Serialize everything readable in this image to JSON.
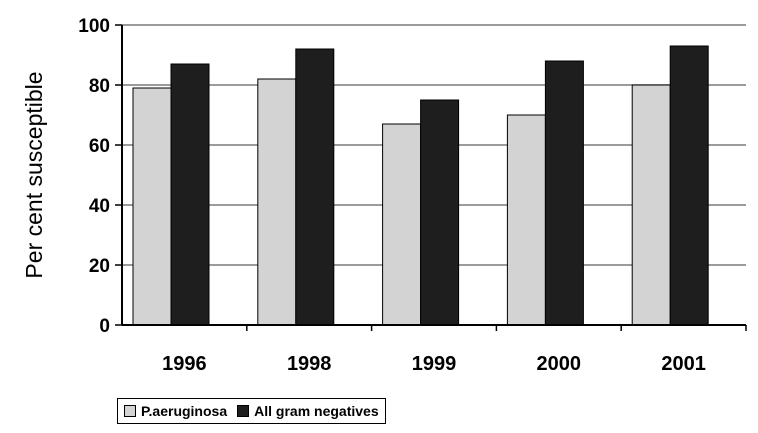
{
  "chart_data": {
    "type": "bar",
    "categories": [
      "1996",
      "1998",
      "1999",
      "2000",
      "2001"
    ],
    "series": [
      {
        "name": "P.aeruginosa",
        "values": [
          79,
          82,
          67,
          70,
          80
        ],
        "color": "#d3d3d3"
      },
      {
        "name": "All gram negatives",
        "values": [
          87,
          92,
          75,
          88,
          93
        ],
        "color": "#1e1e1e"
      }
    ],
    "title": "",
    "xlabel": "",
    "ylabel": "Per cent susceptible",
    "ylim": [
      0,
      100
    ],
    "yticks": [
      0,
      20,
      40,
      60,
      80,
      100
    ],
    "grid": true,
    "legend_position": "bottom-left"
  }
}
